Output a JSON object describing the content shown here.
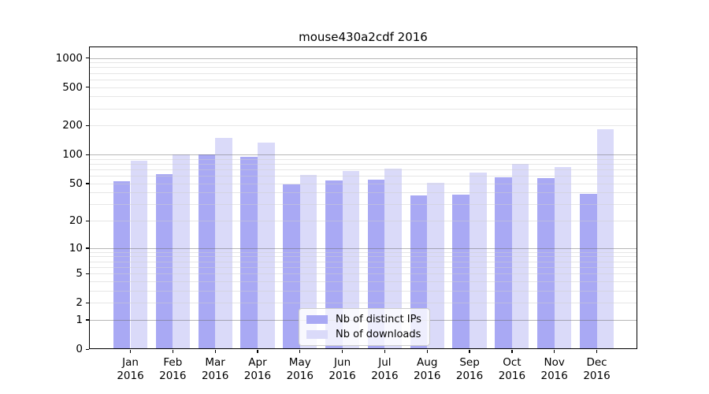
{
  "title": "mouse430a2cdf 2016",
  "chart_data": {
    "type": "bar",
    "title": "mouse430a2cdf 2016",
    "categories": [
      "Jan",
      "Feb",
      "Mar",
      "Apr",
      "May",
      "Jun",
      "Jul",
      "Aug",
      "Sep",
      "Oct",
      "Nov",
      "Dec"
    ],
    "category_year": "2016",
    "x_tick_labels": [
      [
        "Jan",
        "2016"
      ],
      [
        "Feb",
        "2016"
      ],
      [
        "Mar",
        "2016"
      ],
      [
        "Apr",
        "2016"
      ],
      [
        "May",
        "2016"
      ],
      [
        "Jun",
        "2016"
      ],
      [
        "Jul",
        "2016"
      ],
      [
        "Aug",
        "2016"
      ],
      [
        "Sep",
        "2016"
      ],
      [
        "Oct",
        "2016"
      ],
      [
        "Nov",
        "2016"
      ],
      [
        "Dec",
        "2016"
      ]
    ],
    "series": [
      {
        "name": "Nb of distinct IPs",
        "color": "#a9a9f4",
        "values": [
          53,
          63,
          101,
          94,
          49,
          54,
          55,
          37,
          38,
          58,
          57,
          39
        ]
      },
      {
        "name": "Nb of downloads",
        "color": "#dadaf9",
        "values": [
          87,
          101,
          148,
          132,
          61,
          67,
          72,
          51,
          65,
          80,
          74,
          183
        ]
      }
    ],
    "yscale": "log1p",
    "ylabel": "",
    "xlabel": "",
    "ylim": [
      0,
      1320
    ],
    "yticks": [
      0,
      1,
      2,
      5,
      10,
      20,
      50,
      100,
      200,
      500,
      1000
    ],
    "grid": {
      "on": true,
      "major_lines": [
        1,
        10,
        100,
        1000
      ],
      "minor_lines": [
        2,
        3,
        4,
        5,
        6,
        7,
        8,
        9,
        20,
        30,
        40,
        50,
        60,
        70,
        80,
        90,
        200,
        300,
        400,
        500,
        600,
        700,
        800,
        900
      ]
    },
    "legend_position": "lower-center"
  },
  "colors": {
    "distinct_ips_bar": "#a9a9f4",
    "downloads_bar": "#dadaf9",
    "axis": "#000000",
    "legend_border": "#cccccc"
  }
}
